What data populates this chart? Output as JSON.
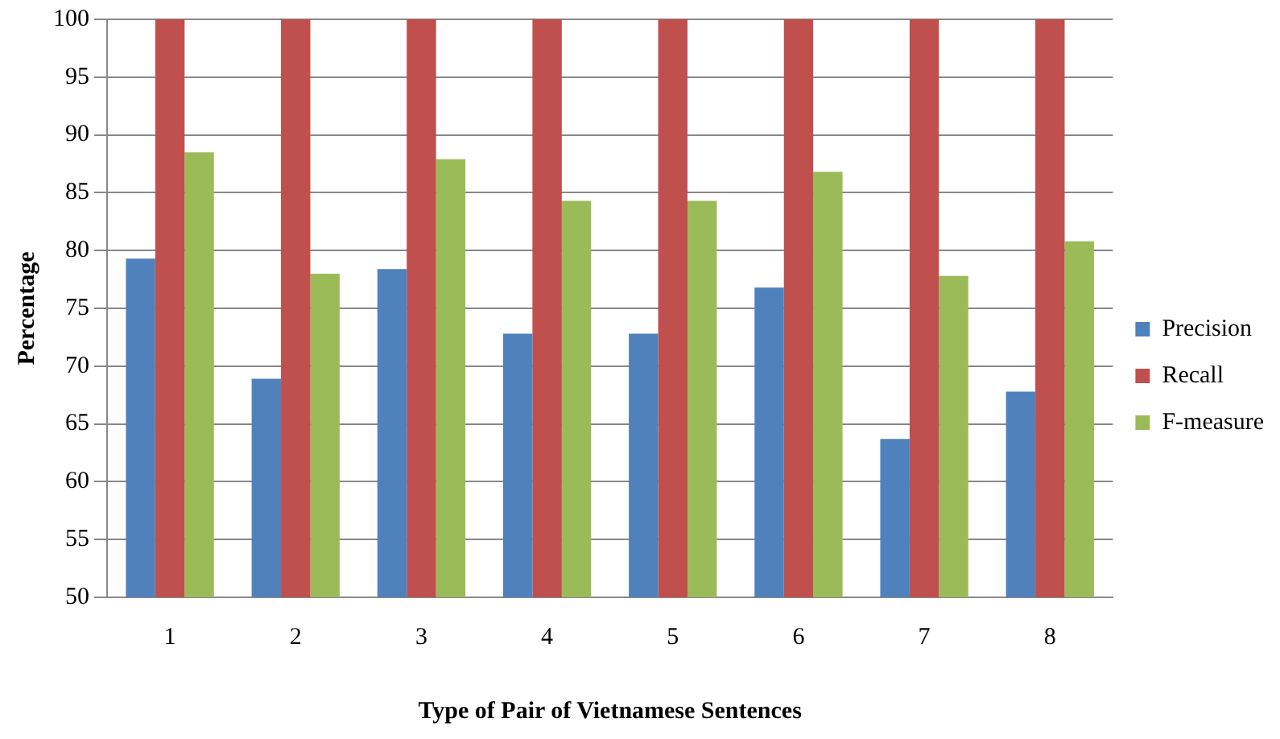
{
  "chart_data": {
    "type": "bar",
    "xlabel": "Type of Pair of Vietnamese Sentences",
    "ylabel": "Percentage",
    "categories": [
      "1",
      "2",
      "3",
      "4",
      "5",
      "6",
      "7",
      "8"
    ],
    "series": [
      {
        "name": "Precision",
        "color": "#4f81bd",
        "values": [
          79.3,
          68.9,
          78.4,
          72.8,
          72.8,
          76.8,
          63.7,
          67.8
        ]
      },
      {
        "name": "Recall",
        "color": "#c0504d",
        "values": [
          100,
          100,
          100,
          100,
          100,
          100,
          100,
          100
        ]
      },
      {
        "name": "F-measure",
        "color": "#9bbb59",
        "values": [
          88.5,
          78,
          87.9,
          84.3,
          84.3,
          86.8,
          77.8,
          80.8
        ]
      }
    ],
    "ylim": [
      50,
      100
    ],
    "yticks": [
      50,
      55,
      60,
      65,
      70,
      75,
      80,
      85,
      90,
      95,
      100
    ],
    "grid": "y",
    "legend": "right"
  }
}
